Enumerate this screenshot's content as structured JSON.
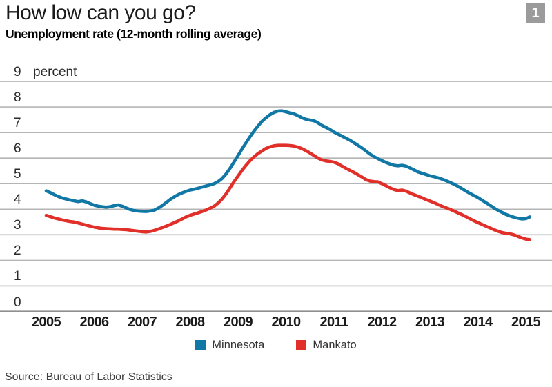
{
  "header": {
    "title": "How low can you go?",
    "badge": "1",
    "subtitle": "Unemployment rate (12-month rolling average)"
  },
  "source": "Source: Bureau of Labor Statistics",
  "colors": {
    "gridline": "#b5b5b5",
    "axis": "#8f8f8f",
    "badge_bg": "#9b9b9b",
    "badge_text": "#ffffff",
    "minnesota": "#1178a6",
    "mankato": "#e1302a"
  },
  "chart_data": {
    "type": "line",
    "title": "How low can you go?",
    "subtitle": "Unemployment rate (12-month rolling average)",
    "xlabel": "",
    "ylabel": "percent",
    "ylim": [
      0,
      9
    ],
    "y_ticks": [
      9,
      8,
      7,
      6,
      5,
      4,
      3,
      2,
      1,
      0
    ],
    "x_ticks": [
      2005,
      2006,
      2007,
      2008,
      2009,
      2010,
      2011,
      2012,
      2013,
      2014,
      2015
    ],
    "x_start_year": 2005,
    "x_step_months": 1,
    "grid": "horizontal",
    "legend_position": "bottom-center",
    "series": [
      {
        "name": "Minnesota",
        "color": "#1178a6",
        "values": [
          4.72,
          4.65,
          4.57,
          4.5,
          4.44,
          4.4,
          4.36,
          4.33,
          4.3,
          4.33,
          4.29,
          4.22,
          4.16,
          4.12,
          4.1,
          4.08,
          4.1,
          4.14,
          4.17,
          4.12,
          4.05,
          3.99,
          3.95,
          3.93,
          3.92,
          3.91,
          3.93,
          3.96,
          4.04,
          4.14,
          4.26,
          4.38,
          4.48,
          4.57,
          4.64,
          4.7,
          4.75,
          4.78,
          4.82,
          4.87,
          4.91,
          4.95,
          5.0,
          5.08,
          5.2,
          5.38,
          5.6,
          5.85,
          6.1,
          6.36,
          6.6,
          6.84,
          7.06,
          7.26,
          7.44,
          7.58,
          7.7,
          7.79,
          7.84,
          7.85,
          7.81,
          7.77,
          7.73,
          7.66,
          7.58,
          7.52,
          7.49,
          7.46,
          7.38,
          7.28,
          7.2,
          7.12,
          7.02,
          6.94,
          6.86,
          6.78,
          6.7,
          6.6,
          6.5,
          6.4,
          6.28,
          6.16,
          6.06,
          5.98,
          5.9,
          5.83,
          5.77,
          5.72,
          5.7,
          5.72,
          5.69,
          5.62,
          5.54,
          5.46,
          5.41,
          5.36,
          5.31,
          5.27,
          5.23,
          5.18,
          5.12,
          5.05,
          4.98,
          4.9,
          4.81,
          4.71,
          4.62,
          4.54,
          4.46,
          4.36,
          4.26,
          4.16,
          4.05,
          3.96,
          3.88,
          3.8,
          3.74,
          3.69,
          3.65,
          3.62,
          3.63,
          3.7
        ]
      },
      {
        "name": "Mankato",
        "color": "#e1302a",
        "values": [
          3.76,
          3.71,
          3.66,
          3.62,
          3.58,
          3.55,
          3.52,
          3.5,
          3.46,
          3.42,
          3.38,
          3.34,
          3.3,
          3.27,
          3.25,
          3.24,
          3.23,
          3.22,
          3.22,
          3.21,
          3.2,
          3.18,
          3.16,
          3.14,
          3.12,
          3.11,
          3.13,
          3.17,
          3.22,
          3.28,
          3.34,
          3.4,
          3.47,
          3.54,
          3.62,
          3.7,
          3.76,
          3.81,
          3.86,
          3.91,
          3.97,
          4.04,
          4.12,
          4.24,
          4.4,
          4.6,
          4.84,
          5.08,
          5.3,
          5.52,
          5.72,
          5.9,
          6.05,
          6.18,
          6.28,
          6.38,
          6.44,
          6.48,
          6.5,
          6.5,
          6.5,
          6.49,
          6.47,
          6.43,
          6.37,
          6.29,
          6.2,
          6.1,
          6.0,
          5.93,
          5.89,
          5.87,
          5.84,
          5.78,
          5.69,
          5.6,
          5.52,
          5.44,
          5.35,
          5.26,
          5.16,
          5.1,
          5.08,
          5.07,
          5.0,
          4.92,
          4.84,
          4.77,
          4.73,
          4.75,
          4.71,
          4.64,
          4.57,
          4.51,
          4.45,
          4.38,
          4.32,
          4.26,
          4.19,
          4.12,
          4.06,
          4.0,
          3.93,
          3.86,
          3.79,
          3.71,
          3.63,
          3.55,
          3.48,
          3.41,
          3.34,
          3.27,
          3.2,
          3.14,
          3.09,
          3.06,
          3.04,
          3.0,
          2.94,
          2.88,
          2.83,
          2.81
        ]
      }
    ]
  }
}
